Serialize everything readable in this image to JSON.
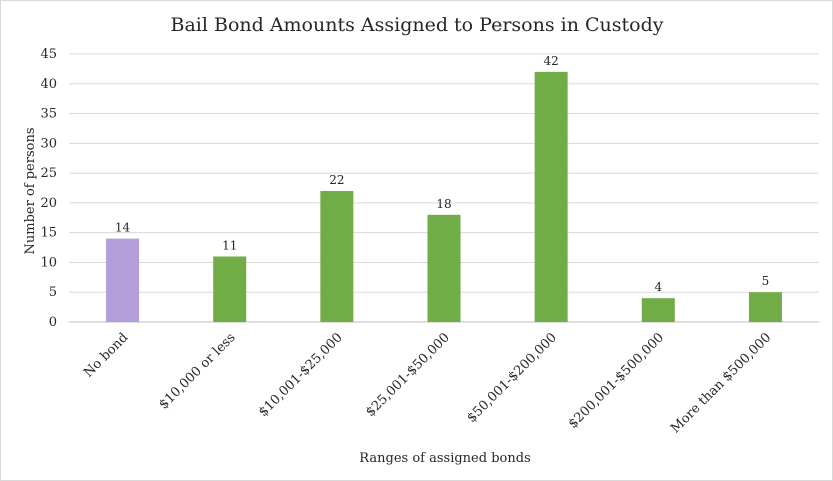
{
  "chart_data": {
    "type": "bar",
    "title": "Bail Bond Amounts Assigned to Persons in Custody",
    "xlabel": "Ranges of assigned bonds",
    "ylabel": "Number of persons",
    "categories": [
      "No bond",
      "$10,000 or less",
      "$10,001-$25,000",
      "$25,001-$50,000",
      "$50,001-$200,000",
      "$200,001-$500,000",
      "More than $500,000"
    ],
    "values": [
      14,
      11,
      22,
      18,
      42,
      4,
      5
    ],
    "bar_colors": [
      "#b39ddb",
      "#70ad47",
      "#70ad47",
      "#70ad47",
      "#70ad47",
      "#70ad47",
      "#70ad47"
    ],
    "ylim": [
      0,
      45
    ],
    "yticks": [
      0,
      5,
      10,
      15,
      20,
      25,
      30,
      35,
      40,
      45
    ],
    "grid": true,
    "legend": "none",
    "data_labels": true
  },
  "colors": {
    "gridline": "#d9d9d9",
    "axis": "#bfbfbf"
  }
}
